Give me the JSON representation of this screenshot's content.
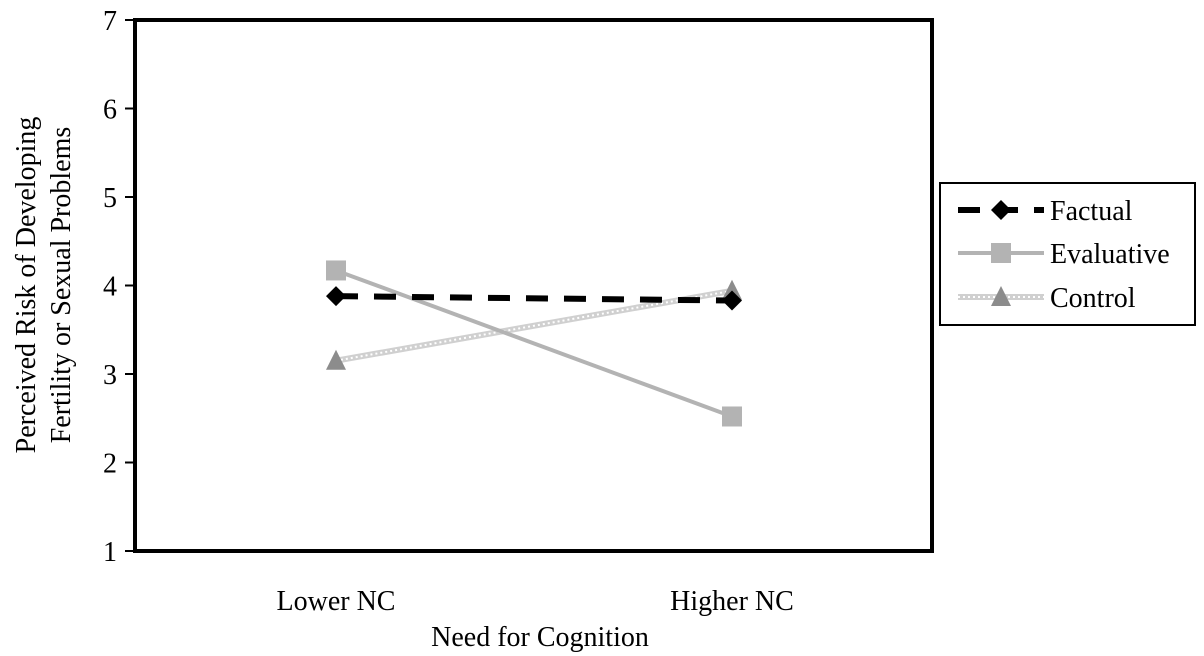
{
  "chart_data": {
    "type": "line",
    "categories": [
      "Lower NC",
      "Higher NC"
    ],
    "xlabel": "Need for Cognition",
    "ylabel": [
      "Perceived Risk of Developing",
      "Fertility or Sexual Problems"
    ],
    "ylim": [
      1,
      7
    ],
    "yticks": [
      1,
      2,
      3,
      4,
      5,
      6,
      7
    ],
    "grid": false,
    "legend_position": "right",
    "series": [
      {
        "name": "Factual",
        "values": [
          3.88,
          3.83
        ],
        "color": "#000000",
        "line_style": "dashed",
        "marker": "diamond"
      },
      {
        "name": "Evaluative",
        "values": [
          4.17,
          2.52
        ],
        "color": "#b3b3b3",
        "line_style": "solid",
        "marker": "square"
      },
      {
        "name": "Control",
        "values": [
          3.15,
          3.94
        ],
        "color": "#d0d0d0",
        "line_style": "dotted-band",
        "marker": "triangle",
        "marker_color": "#8c8c8c"
      }
    ]
  }
}
